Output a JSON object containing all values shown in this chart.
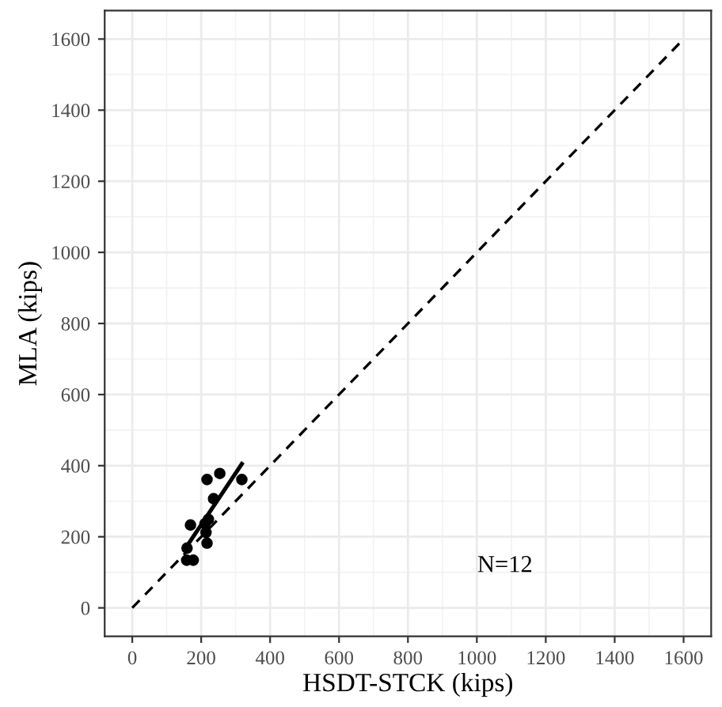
{
  "chart_data": {
    "type": "scatter",
    "xlabel": "HSDT-STCK (kips)",
    "ylabel": "MLA (kips)",
    "series": [
      {
        "type": "line",
        "line_style": "dashed",
        "color": "#000000",
        "x": [
          0,
          1600
        ],
        "values": [
          0,
          1600
        ]
      },
      {
        "marker": "circle",
        "color": "#000000",
        "x": [
          159,
          169,
          158,
          177,
          217,
          254,
          318,
          236,
          217,
          214,
          211,
          221
        ],
        "values": [
          168,
          233,
          134,
          134,
          361,
          378,
          361,
          307,
          182,
          212,
          237,
          249
        ]
      },
      {
        "type": "line",
        "line_style": "solid",
        "color": "#000000",
        "x": [
          163,
          318
        ],
        "values": [
          180,
          405
        ]
      }
    ],
    "annotations": [
      "N=12"
    ],
    "xlim": [
      -80,
      1680
    ],
    "ylim": [
      -80,
      1680
    ],
    "xticks": [
      0,
      200,
      400,
      600,
      800,
      1000,
      1200,
      1400,
      1600
    ],
    "yticks": [
      0,
      200,
      400,
      600,
      800,
      1000,
      1200,
      1400,
      1600
    ],
    "grid": true
  }
}
